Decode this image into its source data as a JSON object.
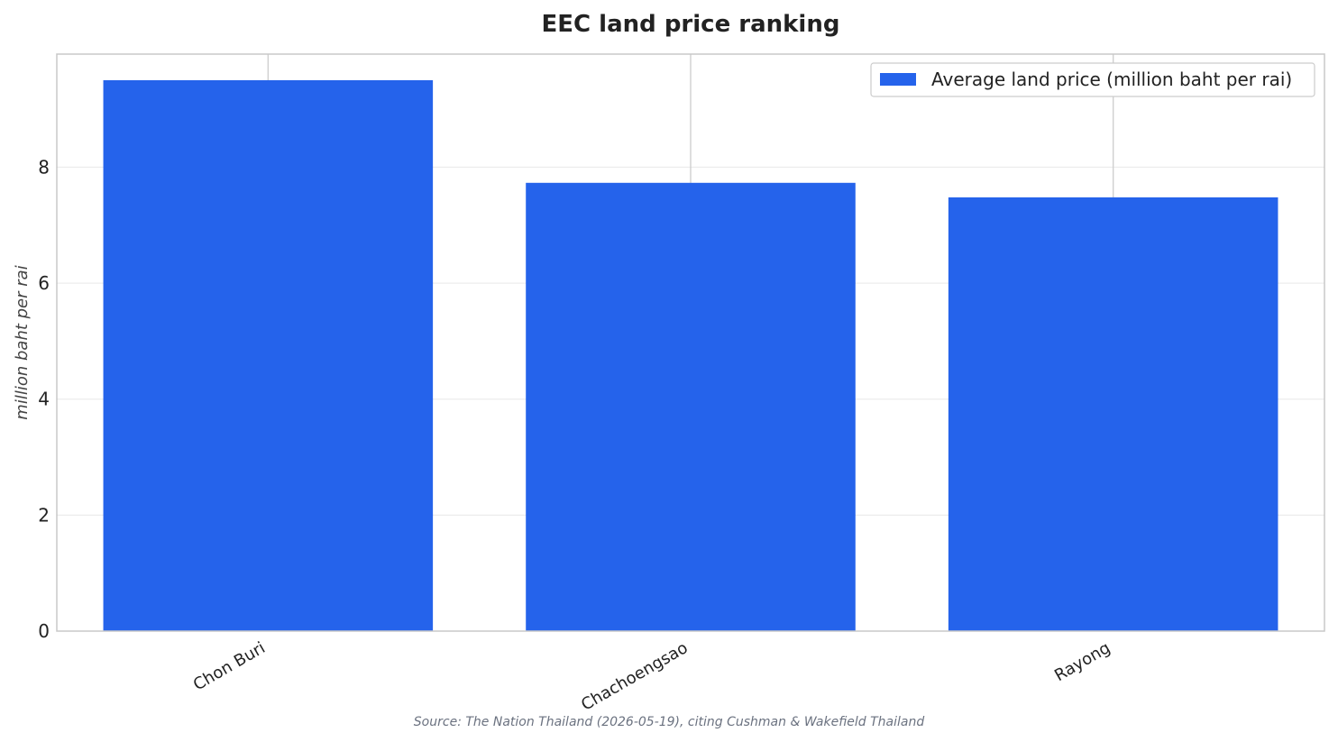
{
  "chart_data": {
    "type": "bar",
    "title": "EEC land price ranking",
    "xlabel": "",
    "ylabel": "million baht per rai",
    "categories": [
      "Chon Buri",
      "Chachoengsao",
      "Rayong"
    ],
    "series": [
      {
        "name": "Average land price (million baht per rai)",
        "values": [
          9.5,
          7.73,
          7.48
        ]
      }
    ],
    "ylim": [
      0,
      9.95
    ],
    "yticks": [
      0,
      2,
      4,
      6,
      8
    ],
    "grid": "y",
    "legend_position": "top-right",
    "source": "Source: The Nation Thailand (2026-05-19), citing Cushman & Wakefield Thailand",
    "colors": {
      "bar": "#2563eb",
      "text": "#222222",
      "grid": "#ebebeb",
      "frame": "#c8c8c8",
      "source": "#6b7280"
    }
  }
}
